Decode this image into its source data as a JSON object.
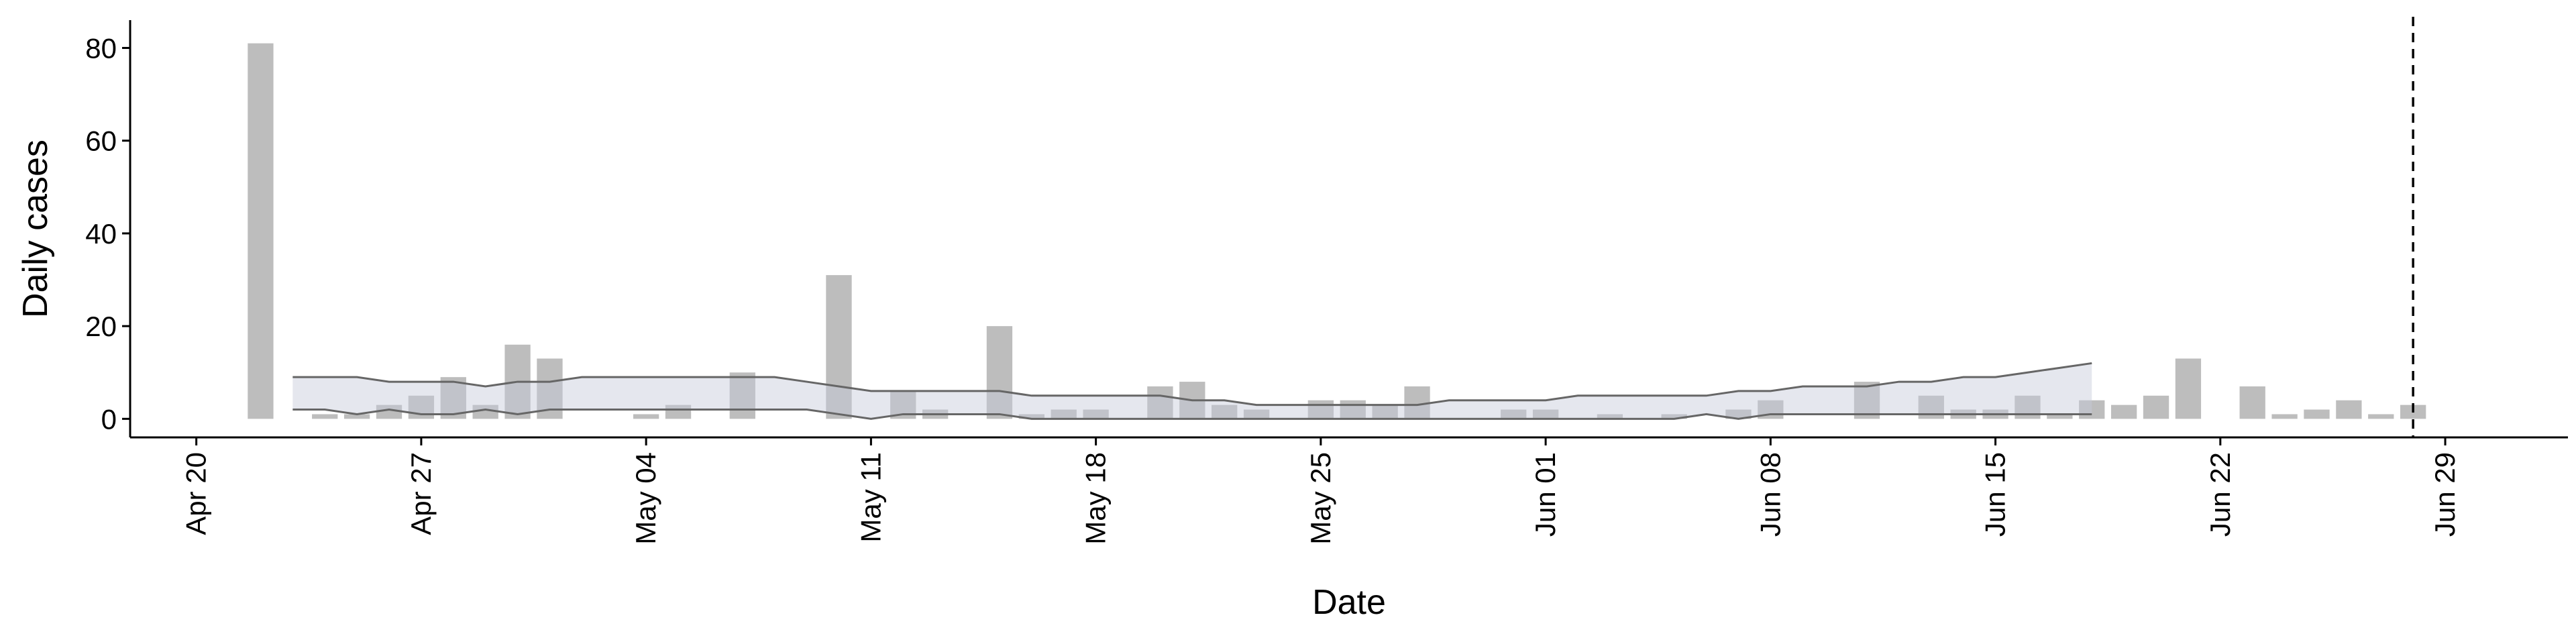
{
  "chart_data": {
    "type": "bar",
    "x_label": "Date",
    "y_label": "Daily cases",
    "categories": [
      "Apr 18",
      "Apr 19",
      "Apr 20",
      "Apr 21",
      "Apr 22",
      "Apr 23",
      "Apr 24",
      "Apr 25",
      "Apr 26",
      "Apr 27",
      "Apr 28",
      "Apr 29",
      "Apr 30",
      "May 01",
      "May 02",
      "May 03",
      "May 04",
      "May 05",
      "May 06",
      "May 07",
      "May 08",
      "May 09",
      "May 10",
      "May 11",
      "May 12",
      "May 13",
      "May 14",
      "May 15",
      "May 16",
      "May 17",
      "May 18",
      "May 19",
      "May 20",
      "May 21",
      "May 22",
      "May 23",
      "May 24",
      "May 25",
      "May 26",
      "May 27",
      "May 28",
      "May 29",
      "May 30",
      "May 31",
      "Jun 01",
      "Jun 02",
      "Jun 03",
      "Jun 04",
      "Jun 05",
      "Jun 06",
      "Jun 07",
      "Jun 08",
      "Jun 09",
      "Jun 10",
      "Jun 11",
      "Jun 12",
      "Jun 13",
      "Jun 14",
      "Jun 15",
      "Jun 16",
      "Jun 17",
      "Jun 18",
      "Jun 19",
      "Jun 20",
      "Jun 21",
      "Jun 22",
      "Jun 23",
      "Jun 24",
      "Jun 25",
      "Jun 26",
      "Jun 27",
      "Jun 28",
      "Jun 29",
      "Jun 30",
      "Jul 01",
      "Jul 02"
    ],
    "values": [
      null,
      null,
      null,
      null,
      81,
      0,
      1,
      1,
      3,
      5,
      9,
      3,
      16,
      13,
      0,
      0,
      1,
      3,
      0,
      10,
      0,
      0,
      31,
      0,
      6,
      2,
      0,
      20,
      1,
      2,
      2,
      0,
      7,
      8,
      3,
      2,
      0,
      4,
      4,
      3,
      7,
      0,
      0,
      2,
      2,
      0,
      1,
      0,
      1,
      0,
      2,
      4,
      0,
      0,
      8,
      0,
      5,
      2,
      2,
      5,
      1,
      4,
      3,
      5,
      13,
      0,
      7,
      1,
      2,
      4,
      1,
      3,
      null,
      null,
      null,
      null
    ],
    "color": "#bdbdbd",
    "band": {
      "upper": [
        null,
        null,
        null,
        null,
        null,
        9,
        9,
        9,
        8,
        8,
        8,
        7,
        8,
        8,
        9,
        9,
        9,
        9,
        9,
        9,
        9,
        8,
        7,
        6,
        6,
        6,
        6,
        6,
        5,
        5,
        5,
        5,
        5,
        4,
        4,
        3,
        3,
        3,
        3,
        3,
        3,
        4,
        4,
        4,
        4,
        5,
        5,
        5,
        5,
        5,
        6,
        6,
        7,
        7,
        7,
        8,
        8,
        9,
        9,
        10,
        11,
        12,
        null,
        null,
        null,
        null,
        null,
        null,
        null,
        null,
        null,
        null,
        null,
        null,
        null,
        null
      ],
      "lower": [
        null,
        null,
        null,
        null,
        null,
        2,
        2,
        1,
        2,
        1,
        1,
        2,
        1,
        2,
        2,
        2,
        2,
        2,
        2,
        2,
        2,
        2,
        1,
        0,
        1,
        1,
        1,
        1,
        0,
        0,
        0,
        0,
        0,
        0,
        0,
        0,
        0,
        0,
        0,
        0,
        0,
        0,
        0,
        0,
        0,
        0,
        0,
        0,
        0,
        1,
        0,
        1,
        1,
        1,
        1,
        1,
        1,
        1,
        1,
        1,
        1,
        1,
        null,
        null,
        null,
        null,
        null,
        null,
        null,
        null,
        null,
        null,
        null,
        null,
        null,
        null
      ],
      "fill": "#c5cad9",
      "line_color": "#666666"
    },
    "vline": "Jun 28",
    "xticks": [
      "Apr 20",
      "Apr 27",
      "May 04",
      "May 11",
      "May 18",
      "May 25",
      "Jun 01",
      "Jun 08",
      "Jun 15",
      "Jun 22",
      "Jun 29"
    ],
    "ylim": [
      -4,
      86
    ],
    "yticks": [
      0,
      20,
      40,
      60,
      80
    ],
    "grid": false
  }
}
